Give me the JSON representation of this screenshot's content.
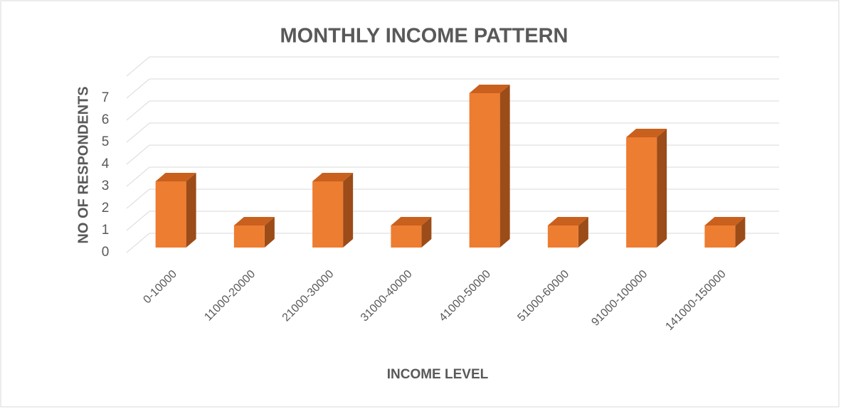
{
  "chart_data": {
    "type": "bar3d",
    "title": "MONTHLY INCOME PATTERN",
    "x_label": "INCOME LEVEL",
    "y_label": "NO OF RESPONDENTS",
    "categories": [
      "0-10000",
      "11000-20000",
      "21000-30000",
      "31000-40000",
      "41000-50000",
      "51000-60000",
      "91000-100000",
      "141000-150000"
    ],
    "values": [
      3,
      1,
      3,
      1,
      7,
      1,
      5,
      1
    ],
    "color": "#ED7D31",
    "ylim": [
      0,
      8
    ],
    "yticks": [
      0,
      1,
      2,
      3,
      4,
      5,
      6,
      7
    ],
    "grid": true
  }
}
